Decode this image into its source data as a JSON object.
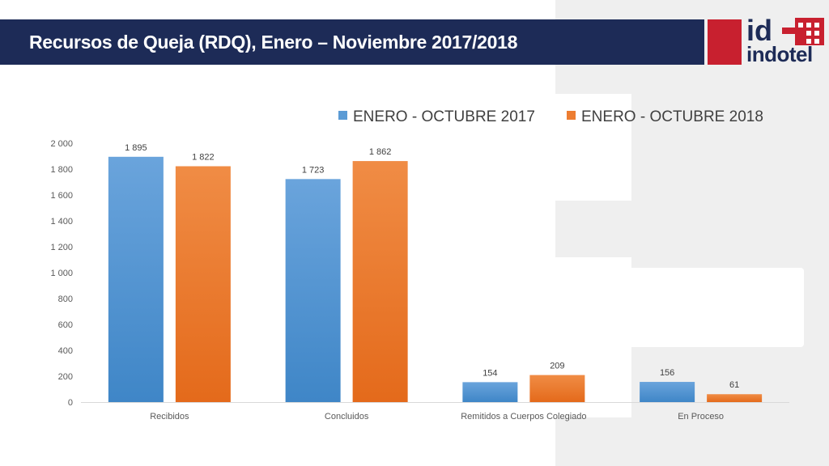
{
  "slide": {
    "title": "Recursos de Queja (RDQ), Enero – Noviembre 2017/2018"
  },
  "logo": {
    "text": "indotel",
    "mark": "id"
  },
  "colors": {
    "header_bg": "#1d2b57",
    "accent_red": "#c8202f",
    "series_2017": "#5b9bd5",
    "series_2018": "#ed7d31"
  },
  "chart_data": {
    "type": "bar",
    "title": "",
    "xlabel": "",
    "ylabel": "",
    "ylim": [
      0,
      2000
    ],
    "yticks": [
      0,
      200,
      400,
      600,
      800,
      1000,
      1200,
      1400,
      1600,
      1800,
      2000
    ],
    "ytick_labels": [
      "0",
      "200",
      "400",
      "600",
      "800",
      "1 000",
      "1 200",
      "1 400",
      "1 600",
      "1 800",
      "2 000"
    ],
    "grid": false,
    "legend_position": "top",
    "categories": [
      "Recibidos",
      "Concluidos",
      "Remitidos a Cuerpos Colegiado",
      "En Proceso"
    ],
    "series": [
      {
        "name": "ENERO - OCTUBRE 2017",
        "color": "#5b9bd5",
        "values": [
          1895,
          1723,
          154,
          156
        ],
        "labels": [
          "1 895",
          "1 723",
          "154",
          "156"
        ]
      },
      {
        "name": "ENERO - OCTUBRE 2018",
        "color": "#ed7d31",
        "values": [
          1822,
          1862,
          209,
          61
        ],
        "labels": [
          "1 822",
          "1 862",
          "209",
          "61"
        ]
      }
    ]
  }
}
